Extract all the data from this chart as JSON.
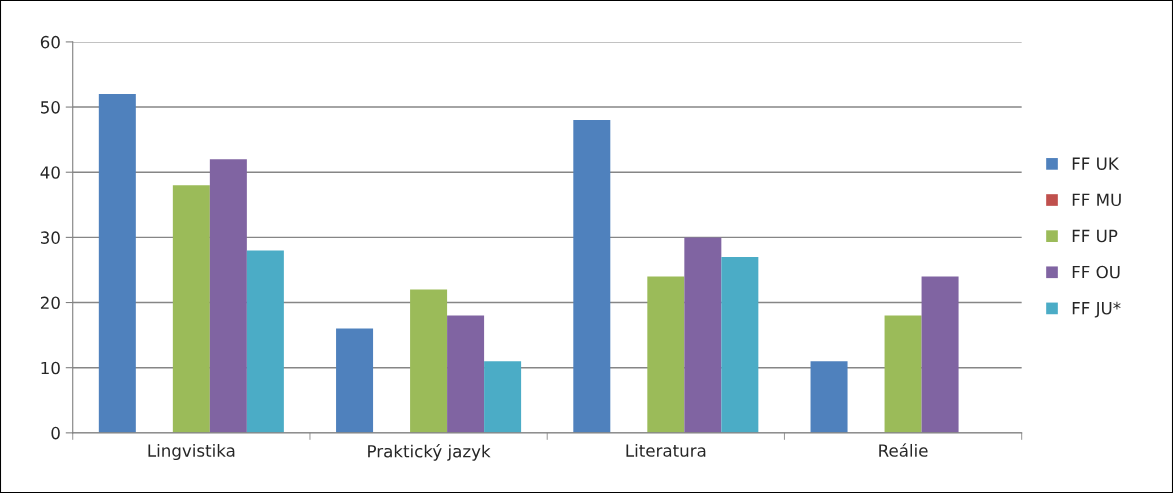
{
  "chart_data": {
    "type": "bar",
    "categories": [
      "Lingvistika",
      "Praktický jazyk",
      "Literatura",
      "Reálie"
    ],
    "series": [
      {
        "name": "FF UK",
        "color": "#4f81bd",
        "values": [
          52,
          16,
          48,
          11
        ]
      },
      {
        "name": "FF MU",
        "color": "#c0504d",
        "values": [
          null,
          null,
          null,
          null
        ]
      },
      {
        "name": "FF UP",
        "color": "#9bbb59",
        "values": [
          38,
          22,
          24,
          18
        ]
      },
      {
        "name": "FF OU",
        "color": "#8064a2",
        "values": [
          42,
          18,
          30,
          24
        ]
      },
      {
        "name": "FF JU*",
        "color": "#4bacc6",
        "values": [
          28,
          11,
          27,
          null
        ]
      }
    ],
    "ylim": [
      0,
      60
    ],
    "yticks": [
      0,
      10,
      20,
      30,
      40,
      50,
      60
    ],
    "grid": "y",
    "legend": "right"
  }
}
